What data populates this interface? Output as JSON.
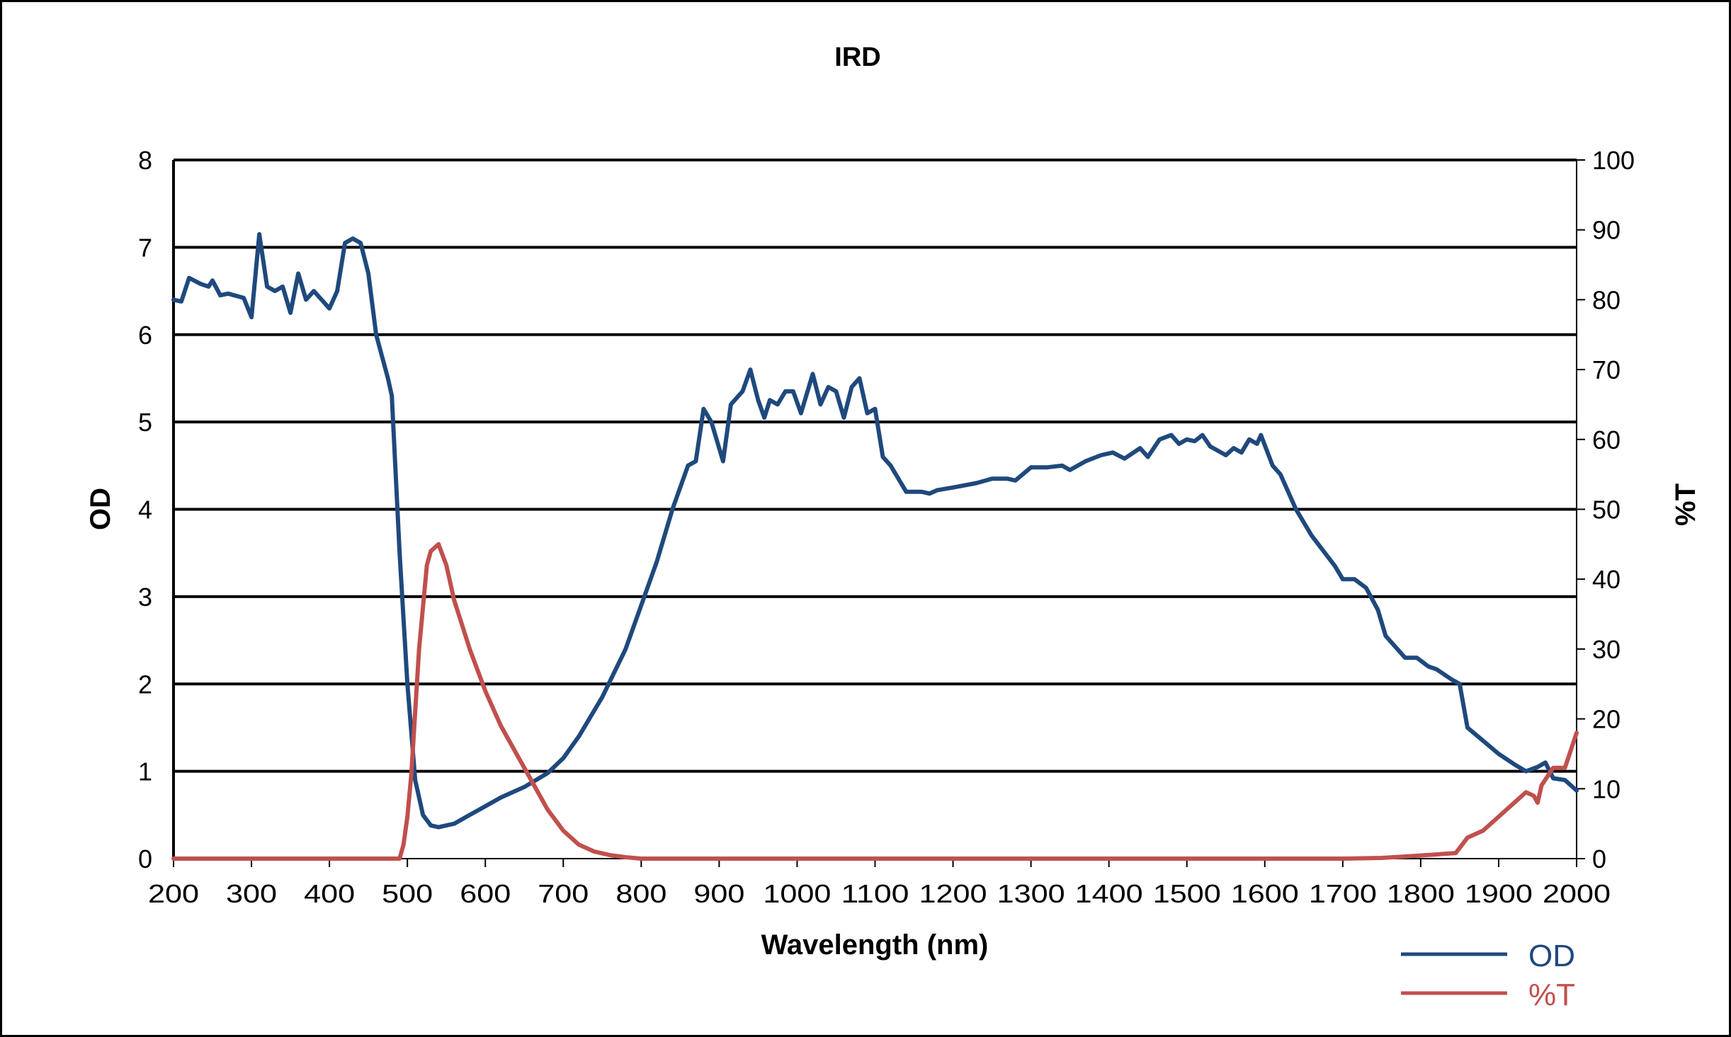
{
  "chart_data": {
    "type": "line",
    "title": "IRD",
    "xlabel": "Wavelength (nm)",
    "ylabel": "OD",
    "y2label": "%T",
    "xlim": [
      200,
      2000
    ],
    "ylim": [
      0,
      8
    ],
    "y2lim": [
      0,
      100
    ],
    "xticks": [
      200,
      300,
      400,
      500,
      600,
      700,
      800,
      900,
      1000,
      1100,
      1200,
      1300,
      1400,
      1500,
      1600,
      1700,
      1800,
      1900,
      2000
    ],
    "yticks": [
      0,
      1,
      2,
      3,
      4,
      5,
      6,
      7,
      8
    ],
    "y2ticks": [
      0,
      10,
      20,
      30,
      40,
      50,
      60,
      70,
      80,
      90,
      100
    ],
    "grid": "horizontal",
    "legend_position": "bottom-right",
    "series": [
      {
        "name": "OD",
        "axis": "left",
        "color": "#1F497D",
        "x": [
          200,
          210,
          220,
          235,
          245,
          250,
          260,
          270,
          290,
          300,
          310,
          320,
          330,
          340,
          350,
          360,
          370,
          380,
          400,
          410,
          420,
          430,
          440,
          450,
          460,
          475,
          480,
          490,
          500,
          510,
          520,
          530,
          540,
          560,
          580,
          600,
          620,
          650,
          680,
          700,
          720,
          750,
          780,
          800,
          820,
          840,
          860,
          870,
          880,
          890,
          900,
          905,
          915,
          930,
          940,
          950,
          958,
          965,
          975,
          985,
          995,
          1005,
          1020,
          1030,
          1040,
          1050,
          1060,
          1070,
          1080,
          1090,
          1100,
          1110,
          1120,
          1140,
          1160,
          1170,
          1180,
          1200,
          1230,
          1250,
          1270,
          1280,
          1300,
          1320,
          1340,
          1350,
          1370,
          1390,
          1405,
          1420,
          1440,
          1450,
          1465,
          1480,
          1490,
          1500,
          1510,
          1520,
          1530,
          1550,
          1560,
          1570,
          1580,
          1590,
          1595,
          1610,
          1620,
          1640,
          1660,
          1690,
          1700,
          1715,
          1730,
          1745,
          1755,
          1770,
          1780,
          1795,
          1810,
          1820,
          1840,
          1850,
          1860,
          1880,
          1900,
          1920,
          1935,
          1950,
          1960,
          1970,
          1985,
          2000
        ],
        "y": [
          6.4,
          6.38,
          6.65,
          6.58,
          6.55,
          6.62,
          6.45,
          6.47,
          6.42,
          6.2,
          7.15,
          6.55,
          6.5,
          6.55,
          6.25,
          6.7,
          6.4,
          6.5,
          6.3,
          6.5,
          7.05,
          7.1,
          7.05,
          6.7,
          6.0,
          5.5,
          5.3,
          3.5,
          2.0,
          0.9,
          0.5,
          0.38,
          0.36,
          0.4,
          0.5,
          0.6,
          0.7,
          0.82,
          0.98,
          1.15,
          1.4,
          1.85,
          2.4,
          2.9,
          3.4,
          4.0,
          4.5,
          4.55,
          5.15,
          5.0,
          4.7,
          4.55,
          5.2,
          5.35,
          5.6,
          5.25,
          5.05,
          5.25,
          5.2,
          5.35,
          5.35,
          5.1,
          5.55,
          5.2,
          5.4,
          5.35,
          5.05,
          5.4,
          5.5,
          5.1,
          5.15,
          4.6,
          4.5,
          4.2,
          4.2,
          4.18,
          4.22,
          4.25,
          4.3,
          4.35,
          4.35,
          4.33,
          4.48,
          4.48,
          4.5,
          4.45,
          4.55,
          4.62,
          4.65,
          4.58,
          4.7,
          4.6,
          4.8,
          4.85,
          4.75,
          4.8,
          4.78,
          4.85,
          4.72,
          4.62,
          4.7,
          4.65,
          4.8,
          4.75,
          4.85,
          4.5,
          4.4,
          4.0,
          3.7,
          3.35,
          3.2,
          3.2,
          3.1,
          2.85,
          2.55,
          2.4,
          2.3,
          2.3,
          2.2,
          2.17,
          2.05,
          2.0,
          1.5,
          1.35,
          1.2,
          1.08,
          1.0,
          1.05,
          1.1,
          0.92,
          0.9,
          0.78
        ]
      },
      {
        "name": "%T",
        "axis": "right",
        "color": "#C0504D",
        "x": [
          200,
          480,
          490,
          495,
          500,
          505,
          515,
          525,
          530,
          540,
          550,
          560,
          580,
          600,
          620,
          640,
          660,
          680,
          700,
          720,
          740,
          760,
          780,
          800,
          900,
          1200,
          1500,
          1700,
          1750,
          1780,
          1820,
          1845,
          1860,
          1880,
          1900,
          1920,
          1935,
          1945,
          1950,
          1955,
          1970,
          1985,
          2000
        ],
        "y": [
          0,
          0,
          0,
          2,
          6,
          12,
          30,
          42,
          44,
          45,
          42,
          37,
          30,
          24,
          19,
          15,
          11,
          7,
          4,
          2,
          1,
          0.5,
          0.2,
          0,
          0,
          0,
          0,
          0,
          0.1,
          0.3,
          0.6,
          0.8,
          3,
          4,
          6,
          8,
          9.5,
          9,
          8,
          10.5,
          13,
          13,
          18
        ]
      }
    ]
  }
}
